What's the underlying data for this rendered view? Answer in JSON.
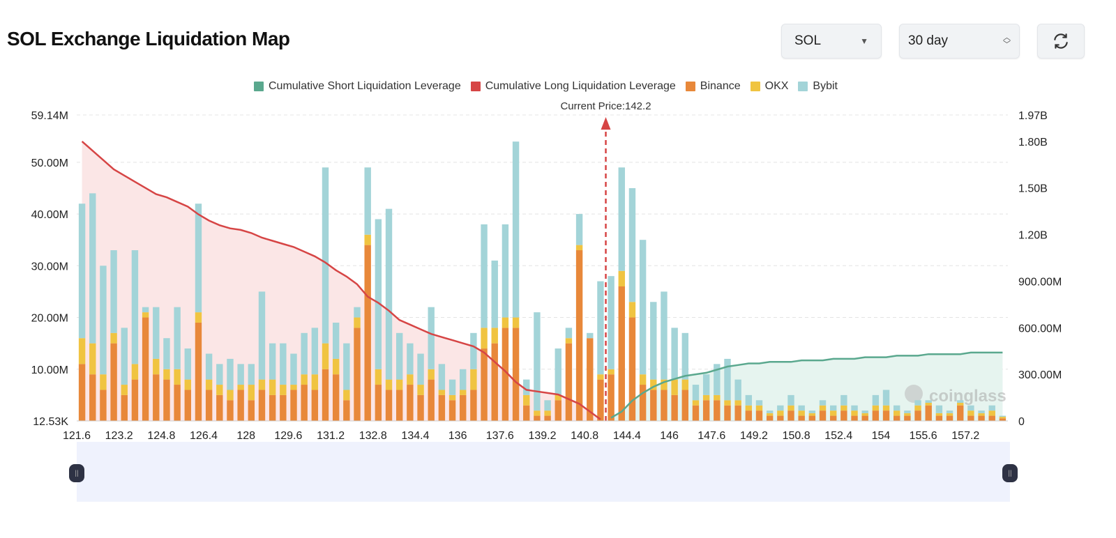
{
  "header": {
    "title": "SOL Exchange Liquidation Map",
    "symbol_select": "SOL",
    "period_select": "30 day",
    "refresh_icon": "refresh-icon"
  },
  "colors": {
    "short_cum": "#5aa88e",
    "long_cum": "#d64545",
    "binance": "#e8883a",
    "okx": "#f0c441",
    "bybit": "#a3d4d8",
    "long_area": "#fbe6e6",
    "short_area": "#e6f4ef"
  },
  "chart_data": {
    "type": "bar",
    "stacked": true,
    "title": "",
    "current_price_label": "Current Price:142.2",
    "current_price": 142.2,
    "watermark": "coinglass",
    "legend": [
      "Cumulative Short Liquidation Leverage",
      "Cumulative Long Liquidation Leverage",
      "Binance",
      "OKX",
      "Bybit"
    ],
    "legend_placement": "top",
    "grid": true,
    "y_left": {
      "range": [
        0,
        59.14
      ],
      "unit": "M",
      "tick_values": [
        0,
        10,
        20,
        30,
        40,
        50,
        59.14
      ],
      "tick_labels": [
        "12.53K",
        "10.00M",
        "20.00M",
        "30.00M",
        "40.00M",
        "50.00M",
        "59.14M"
      ]
    },
    "y_right": {
      "range": [
        0,
        1.97
      ],
      "unit": "B",
      "tick_values": [
        0,
        0.3,
        0.6,
        0.9,
        1.2,
        1.5,
        1.8,
        1.97
      ],
      "tick_labels": [
        "0",
        "300.00M",
        "600.00M",
        "900.00M",
        "1.20B",
        "1.50B",
        "1.80B",
        "1.97B"
      ]
    },
    "x_tick_labels": [
      "121.6",
      "123.2",
      "124.8",
      "126.4",
      "128",
      "129.6",
      "131.2",
      "132.8",
      "134.4",
      "136",
      "137.6",
      "139.2",
      "140.8",
      "144.4",
      "146",
      "147.6",
      "149.2",
      "150.8",
      "152.4",
      "154",
      "155.6",
      "157.2"
    ],
    "categories": [
      121.6,
      122.0,
      122.4,
      122.8,
      123.2,
      123.6,
      124.0,
      124.4,
      124.8,
      125.2,
      125.6,
      126.0,
      126.4,
      126.8,
      127.2,
      127.6,
      128.0,
      128.4,
      128.8,
      129.2,
      129.6,
      130.0,
      130.4,
      130.8,
      131.2,
      131.6,
      132.0,
      132.4,
      132.8,
      133.2,
      133.6,
      134.0,
      134.4,
      134.8,
      135.2,
      135.6,
      136.0,
      136.4,
      136.8,
      137.2,
      137.6,
      138.0,
      138.4,
      138.8,
      139.2,
      139.6,
      140.0,
      140.4,
      140.8,
      141.2,
      143.6,
      144.0,
      144.4,
      144.8,
      145.2,
      145.6,
      146.0,
      146.4,
      146.8,
      147.2,
      147.6,
      148.0,
      148.4,
      148.8,
      149.2,
      149.6,
      150.0,
      150.4,
      150.8,
      151.2,
      151.6,
      152.0,
      152.4,
      152.8,
      153.2,
      153.6,
      154.0,
      154.4,
      154.8,
      155.2,
      155.6,
      156.0,
      156.4,
      156.8,
      157.2,
      157.6,
      158.0,
      158.4
    ],
    "series": [
      {
        "name": "Binance",
        "axis": "left",
        "values": [
          11,
          9,
          6,
          15,
          5,
          8,
          20,
          9,
          8,
          7,
          6,
          19,
          6,
          5,
          4,
          6,
          4,
          6,
          5,
          5,
          6,
          7,
          6,
          10,
          9,
          4,
          18,
          34,
          7,
          6,
          6,
          7,
          5,
          8,
          5,
          4,
          5,
          6,
          14,
          15,
          18,
          18,
          3,
          1,
          1,
          4,
          15,
          33,
          16,
          8,
          9,
          26,
          20,
          7,
          6,
          6,
          5,
          6,
          3,
          4,
          4,
          3,
          3,
          2,
          2,
          1,
          1,
          2,
          1,
          1,
          2,
          1,
          2,
          1,
          1,
          2,
          2,
          1,
          1,
          2,
          3,
          1,
          1,
          3,
          1,
          1,
          1,
          0.5
        ]
      },
      {
        "name": "OKX",
        "axis": "left",
        "values": [
          5,
          6,
          3,
          2,
          2,
          3,
          1,
          3,
          2,
          3,
          2,
          2,
          2,
          2,
          2,
          1,
          3,
          2,
          3,
          2,
          1,
          2,
          3,
          5,
          3,
          2,
          2,
          2,
          3,
          2,
          2,
          2,
          2,
          2,
          1,
          1,
          1,
          4,
          4,
          3,
          2,
          2,
          2,
          1,
          1,
          1,
          1,
          1,
          0,
          1,
          1,
          3,
          3,
          2,
          2,
          2,
          3,
          2,
          1,
          1,
          1,
          1,
          1,
          1,
          1,
          0.5,
          1,
          1,
          1,
          0.5,
          1,
          1,
          1,
          1,
          0.5,
          1,
          1,
          1,
          0.5,
          1,
          0.5,
          0.5,
          0.5,
          0.5,
          1,
          0.5,
          1,
          0.3
        ]
      },
      {
        "name": "Bybit",
        "axis": "left",
        "values": [
          26,
          29,
          21,
          16,
          11,
          22,
          1,
          10,
          6,
          12,
          6,
          21,
          5,
          4,
          6,
          4,
          4,
          17,
          7,
          8,
          6,
          8,
          9,
          34,
          7,
          9,
          2,
          13,
          29,
          33,
          9,
          6,
          6,
          12,
          5,
          3,
          4,
          7,
          20,
          13,
          18,
          34,
          3,
          19,
          2,
          9,
          2,
          6,
          1,
          18,
          18,
          20,
          22,
          26,
          15,
          17,
          10,
          9,
          3,
          4,
          6,
          8,
          4,
          2,
          1,
          0.5,
          1,
          2,
          1,
          0.5,
          1,
          1,
          2,
          1,
          0.5,
          2,
          3,
          1,
          0.5,
          1,
          0.5,
          1.5,
          0.5,
          0.5,
          1,
          0.5,
          1,
          0.2
        ]
      },
      {
        "name": "Cumulative Long Liquidation Leverage",
        "axis": "right",
        "type": "line",
        "values": [
          1.8,
          1.74,
          1.68,
          1.62,
          1.58,
          1.54,
          1.5,
          1.46,
          1.44,
          1.41,
          1.38,
          1.33,
          1.29,
          1.26,
          1.24,
          1.23,
          1.21,
          1.18,
          1.16,
          1.14,
          1.12,
          1.09,
          1.06,
          1.02,
          0.97,
          0.93,
          0.88,
          0.8,
          0.76,
          0.71,
          0.65,
          0.62,
          0.59,
          0.56,
          0.54,
          0.52,
          0.5,
          0.48,
          0.44,
          0.38,
          0.32,
          0.25,
          0.2,
          0.19,
          0.18,
          0.17,
          0.14,
          0.11,
          0.06,
          0.01,
          null,
          null,
          null,
          null,
          null,
          null,
          null,
          null,
          null,
          null,
          null,
          null,
          null,
          null,
          null,
          null,
          null,
          null,
          null,
          null,
          null,
          null,
          null,
          null,
          null,
          null,
          null,
          null,
          null,
          null,
          null,
          null,
          null,
          null,
          null,
          null,
          null,
          null
        ]
      },
      {
        "name": "Cumulative Short Liquidation Leverage",
        "axis": "right",
        "type": "line",
        "values": [
          null,
          null,
          null,
          null,
          null,
          null,
          null,
          null,
          null,
          null,
          null,
          null,
          null,
          null,
          null,
          null,
          null,
          null,
          null,
          null,
          null,
          null,
          null,
          null,
          null,
          null,
          null,
          null,
          null,
          null,
          null,
          null,
          null,
          null,
          null,
          null,
          null,
          null,
          null,
          null,
          null,
          null,
          null,
          null,
          null,
          null,
          null,
          null,
          null,
          null,
          0.02,
          0.06,
          0.13,
          0.18,
          0.22,
          0.25,
          0.27,
          0.29,
          0.3,
          0.31,
          0.33,
          0.35,
          0.36,
          0.37,
          0.37,
          0.38,
          0.38,
          0.38,
          0.39,
          0.39,
          0.39,
          0.4,
          0.4,
          0.4,
          0.41,
          0.41,
          0.41,
          0.42,
          0.42,
          0.42,
          0.43,
          0.43,
          0.43,
          0.43,
          0.44,
          0.44,
          0.44,
          0.44
        ]
      }
    ]
  }
}
